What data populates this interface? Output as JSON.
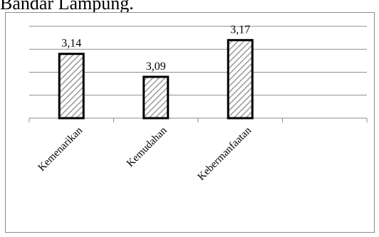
{
  "page": {
    "heading_fragment": "Bandar Lampung."
  },
  "chart_data": {
    "type": "bar",
    "title": "",
    "xlabel": "",
    "ylabel": "",
    "categories": [
      "Kemenarikan",
      "Kemudahan",
      "Kebermanfaatan",
      ""
    ],
    "values": [
      3.14,
      3.09,
      3.17,
      null
    ],
    "value_labels": [
      "3,14",
      "3,09",
      "3,17",
      ""
    ],
    "ylim": [
      3.0,
      3.2
    ],
    "grid": true,
    "legend": "none",
    "y_tick_labels_visible": false,
    "bar_style": "diagonal-hatch",
    "colors": {
      "bar_fill": "#ffffff",
      "hatch": "#9a9a9a",
      "bar_stroke": "#000000",
      "grid": "#8c8c8c"
    }
  }
}
